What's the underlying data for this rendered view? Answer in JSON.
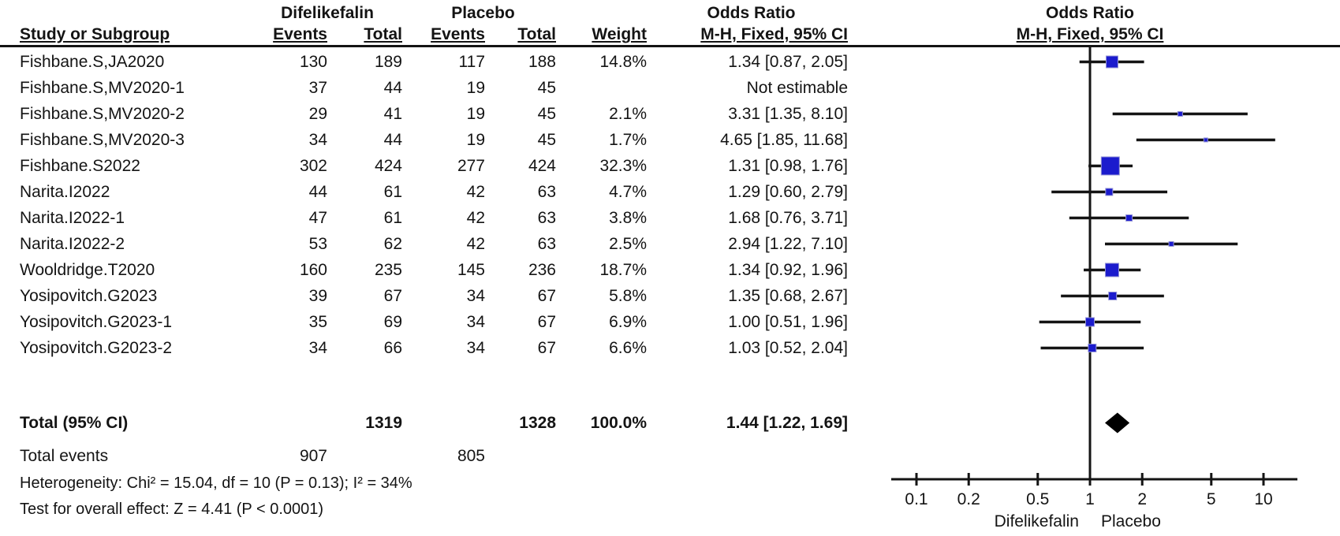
{
  "chart_data": {
    "type": "forest",
    "measure": "Odds Ratio",
    "method": "M-H, Fixed, 95% CI",
    "group_headers": [
      "Difelikefalin",
      "Placebo"
    ],
    "columns": [
      "Study or Subgroup",
      "Events",
      "Total",
      "Events",
      "Total",
      "Weight",
      "M-H, Fixed, 95% CI"
    ],
    "plot_header": [
      "Odds Ratio",
      "M-H, Fixed, 95% CI"
    ],
    "studies": [
      {
        "name": "Fishbane.S,JA2020",
        "d_events": 130,
        "d_total": 189,
        "p_events": 117,
        "p_total": 188,
        "weight": "14.8%",
        "weight_pct": 14.8,
        "or_ci": "1.34 [0.87, 2.05]",
        "or": 1.34,
        "lo": 0.87,
        "hi": 2.05
      },
      {
        "name": "Fishbane.S,MV2020-1",
        "d_events": 37,
        "d_total": 44,
        "p_events": 19,
        "p_total": 45,
        "weight": "",
        "weight_pct": null,
        "or_ci": "Not estimable",
        "or": null,
        "lo": null,
        "hi": null
      },
      {
        "name": "Fishbane.S,MV2020-2",
        "d_events": 29,
        "d_total": 41,
        "p_events": 19,
        "p_total": 45,
        "weight": "2.1%",
        "weight_pct": 2.1,
        "or_ci": "3.31 [1.35, 8.10]",
        "or": 3.31,
        "lo": 1.35,
        "hi": 8.1
      },
      {
        "name": "Fishbane.S,MV2020-3",
        "d_events": 34,
        "d_total": 44,
        "p_events": 19,
        "p_total": 45,
        "weight": "1.7%",
        "weight_pct": 1.7,
        "or_ci": "4.65 [1.85, 11.68]",
        "or": 4.65,
        "lo": 1.85,
        "hi": 11.68
      },
      {
        "name": "Fishbane.S2022",
        "d_events": 302,
        "d_total": 424,
        "p_events": 277,
        "p_total": 424,
        "weight": "32.3%",
        "weight_pct": 32.3,
        "or_ci": "1.31 [0.98, 1.76]",
        "or": 1.31,
        "lo": 0.98,
        "hi": 1.76
      },
      {
        "name": "Narita.I2022",
        "d_events": 44,
        "d_total": 61,
        "p_events": 42,
        "p_total": 63,
        "weight": "4.7%",
        "weight_pct": 4.7,
        "or_ci": "1.29 [0.60, 2.79]",
        "or": 1.29,
        "lo": 0.6,
        "hi": 2.79
      },
      {
        "name": "Narita.I2022-1",
        "d_events": 47,
        "d_total": 61,
        "p_events": 42,
        "p_total": 63,
        "weight": "3.8%",
        "weight_pct": 3.8,
        "or_ci": "1.68 [0.76, 3.71]",
        "or": 1.68,
        "lo": 0.76,
        "hi": 3.71
      },
      {
        "name": "Narita.I2022-2",
        "d_events": 53,
        "d_total": 62,
        "p_events": 42,
        "p_total": 63,
        "weight": "2.5%",
        "weight_pct": 2.5,
        "or_ci": "2.94 [1.22, 7.10]",
        "or": 2.94,
        "lo": 1.22,
        "hi": 7.1
      },
      {
        "name": "Wooldridge.T2020",
        "d_events": 160,
        "d_total": 235,
        "p_events": 145,
        "p_total": 236,
        "weight": "18.7%",
        "weight_pct": 18.7,
        "or_ci": "1.34 [0.92, 1.96]",
        "or": 1.34,
        "lo": 0.92,
        "hi": 1.96
      },
      {
        "name": "Yosipovitch.G2023",
        "d_events": 39,
        "d_total": 67,
        "p_events": 34,
        "p_total": 67,
        "weight": "5.8%",
        "weight_pct": 5.8,
        "or_ci": "1.35 [0.68, 2.67]",
        "or": 1.35,
        "lo": 0.68,
        "hi": 2.67
      },
      {
        "name": "Yosipovitch.G2023-1",
        "d_events": 35,
        "d_total": 69,
        "p_events": 34,
        "p_total": 67,
        "weight": "6.9%",
        "weight_pct": 6.9,
        "or_ci": "1.00 [0.51, 1.96]",
        "or": 1.0,
        "lo": 0.51,
        "hi": 1.96
      },
      {
        "name": "Yosipovitch.G2023-2",
        "d_events": 34,
        "d_total": 66,
        "p_events": 34,
        "p_total": 67,
        "weight": "6.6%",
        "weight_pct": 6.6,
        "or_ci": "1.03 [0.52, 2.04]",
        "or": 1.03,
        "lo": 0.52,
        "hi": 2.04
      }
    ],
    "total": {
      "label": "Total (95% CI)",
      "d_total": 1319,
      "p_total": 1328,
      "weight": "100.0%",
      "or_ci": "1.44 [1.22, 1.69]",
      "or": 1.44,
      "lo": 1.22,
      "hi": 1.69
    },
    "total_events": {
      "label": "Total events",
      "difelikefalin": 907,
      "placebo": 805
    },
    "footnotes": [
      "Heterogeneity: Chi² = 15.04, df = 10 (P = 0.13); I² = 34%",
      "Test for overall effect: Z = 4.41 (P < 0.0001)"
    ],
    "axis": {
      "scale": "log",
      "ticks": [
        0.1,
        0.2,
        0.5,
        1,
        2,
        5,
        10
      ],
      "tick_labels": [
        "0.1",
        "0.2",
        "0.5",
        "1",
        "2",
        "5",
        "10"
      ],
      "left_label": "Difelikefalin",
      "right_label": "Placebo",
      "no_effect_line": 1
    },
    "colors": {
      "marker_fill": "#1b1bcd",
      "marker_stroke": "#9595d6",
      "line": "#141414",
      "diamond": "#000000",
      "text": "#141414",
      "background": "#ffffff"
    }
  }
}
